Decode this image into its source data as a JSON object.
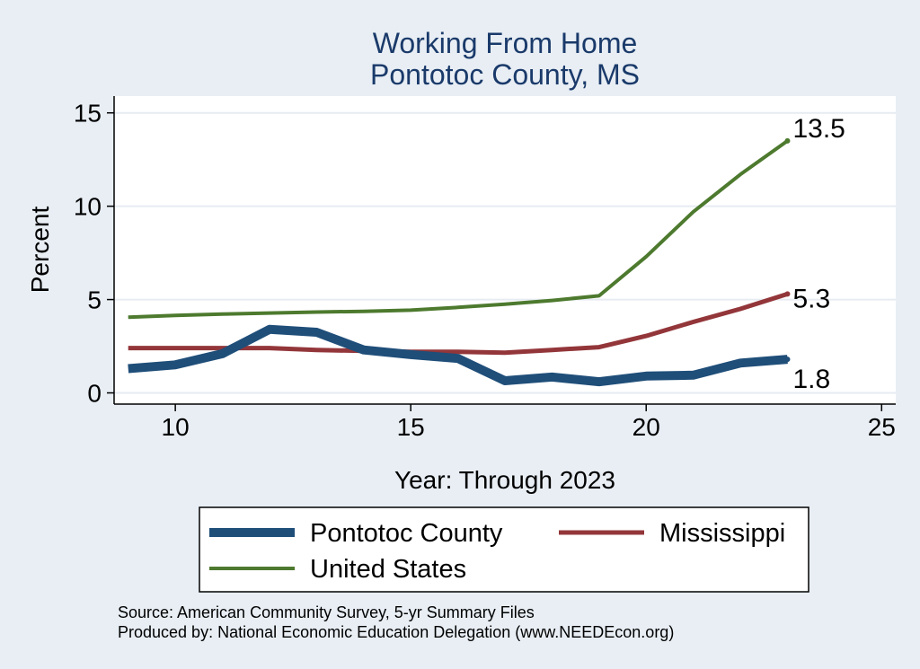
{
  "chart_data": {
    "type": "line",
    "title": "Working From Home",
    "subtitle": "Pontotoc County, MS",
    "xlabel": "Year: Through 2023",
    "ylabel": "Percent",
    "xlim": [
      8.7,
      25.3
    ],
    "ylim": [
      -0.6,
      15.9
    ],
    "x_ticks": [
      10,
      15,
      20,
      25
    ],
    "y_ticks": [
      0,
      5,
      10,
      15
    ],
    "grid": true,
    "legend_position": "bottom",
    "series": [
      {
        "name": "Pontotoc County",
        "color": "#1f4e79",
        "x": [
          9,
          10,
          11,
          12,
          13,
          14,
          15,
          16,
          17,
          18,
          19,
          20,
          21,
          22,
          23
        ],
        "y": [
          1.3,
          1.5,
          2.1,
          3.4,
          3.25,
          2.3,
          2.05,
          1.85,
          0.65,
          0.85,
          0.6,
          0.9,
          0.95,
          1.6,
          1.8
        ],
        "end_label": "1.8"
      },
      {
        "name": "Mississippi",
        "color": "#93363a",
        "x": [
          9,
          10,
          11,
          12,
          13,
          14,
          15,
          16,
          17,
          18,
          19,
          20,
          21,
          22,
          23
        ],
        "y": [
          2.4,
          2.4,
          2.4,
          2.4,
          2.3,
          2.25,
          2.2,
          2.2,
          2.15,
          2.3,
          2.45,
          3.05,
          3.8,
          4.5,
          5.3
        ],
        "end_label": "5.3"
      },
      {
        "name": "United States",
        "color": "#4d7a2e",
        "x": [
          9,
          10,
          11,
          12,
          13,
          14,
          15,
          16,
          17,
          18,
          19,
          20,
          21,
          22,
          23
        ],
        "y": [
          4.05,
          4.15,
          4.22,
          4.28,
          4.33,
          4.37,
          4.43,
          4.58,
          4.75,
          4.95,
          5.2,
          7.3,
          9.7,
          11.7,
          13.5
        ],
        "end_label": "13.5"
      }
    ],
    "source_lines": [
      "Source: American Community Survey, 5-yr Summary Files",
      "Produced by: National Economic Education Delegation (www.NEEDEcon.org)"
    ]
  }
}
